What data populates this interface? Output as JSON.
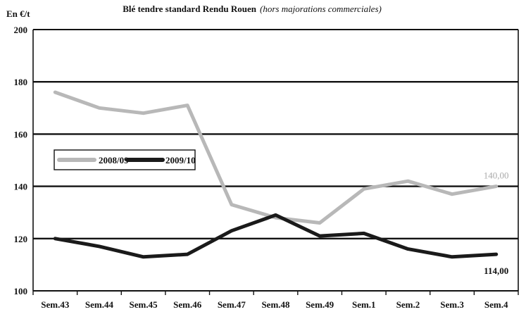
{
  "chart_data": {
    "type": "line",
    "title": "Blé tendre standard Rendu Rouen",
    "subtitle": "(hors majorations commerciales)",
    "ylabel": "En €/t",
    "xlabel": "",
    "categories": [
      "Sem.43",
      "Sem.44",
      "Sem.45",
      "Sem.46",
      "Sem.47",
      "Sem.48",
      "Sem.49",
      "Sem.1",
      "Sem.2",
      "Sem.3",
      "Sem.4"
    ],
    "ylim": [
      100,
      200
    ],
    "yticks": [
      "100",
      "120",
      "140",
      "160",
      "180",
      "200"
    ],
    "grid": true,
    "legend_position": "middle-left",
    "series": [
      {
        "name": "2008/09",
        "color": "#b8b8b8",
        "values": [
          176,
          170,
          168,
          171,
          133,
          128,
          126,
          139,
          142,
          137,
          140
        ],
        "end_label": "140,00"
      },
      {
        "name": "2009/10",
        "color": "#1a1a1a",
        "values": [
          120,
          117,
          113,
          114,
          123,
          129,
          121,
          122,
          116,
          113,
          114
        ],
        "end_label": "114,00"
      }
    ]
  }
}
